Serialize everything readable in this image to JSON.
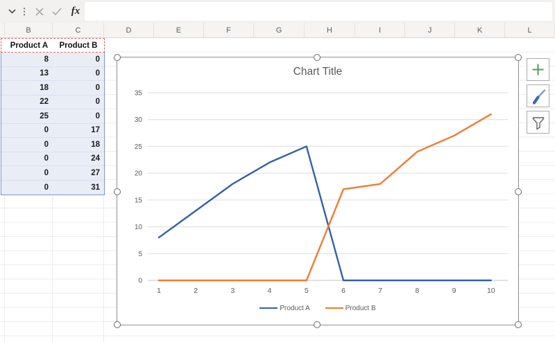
{
  "toolbar": {
    "fx_label": "fx",
    "formula_value": ""
  },
  "sheet": {
    "column_letters": [
      "B",
      "C",
      "D",
      "E",
      "F",
      "G",
      "H",
      "I",
      "J",
      "K",
      "L"
    ]
  },
  "table": {
    "headers": [
      "Product A",
      "Product B"
    ],
    "rows": [
      [
        8,
        0
      ],
      [
        13,
        0
      ],
      [
        18,
        0
      ],
      [
        22,
        0
      ],
      [
        25,
        0
      ],
      [
        0,
        17
      ],
      [
        0,
        18
      ],
      [
        0,
        24
      ],
      [
        0,
        27
      ],
      [
        0,
        31
      ]
    ]
  },
  "chart_data": {
    "type": "line",
    "title": "Chart Title",
    "x": [
      1,
      2,
      3,
      4,
      5,
      6,
      7,
      8,
      9,
      10
    ],
    "series": [
      {
        "name": "Product A",
        "color": "#3260A8",
        "values": [
          8,
          13,
          18,
          22,
          25,
          0,
          0,
          0,
          0,
          0
        ]
      },
      {
        "name": "Product B",
        "color": "#ED7D31",
        "values": [
          0,
          0,
          0,
          0,
          0,
          17,
          18,
          24,
          27,
          31
        ]
      }
    ],
    "ylim": [
      0,
      35
    ],
    "ytick_step": 5,
    "grid": true,
    "legend_position": "bottom"
  },
  "chart_tools": [
    {
      "icon": "plus-icon",
      "accent": "#4e9d57"
    },
    {
      "icon": "brush-icon",
      "accent": "#3a6ab0"
    },
    {
      "icon": "funnel-icon",
      "accent": "#5f6368"
    }
  ],
  "colors": {
    "selection_fill": "#E9EDF6",
    "selection_border": "#7B96C9",
    "header_dash_border": "#E06666",
    "chart_frame": "#8F8F8F",
    "gridline": "#DCDCDC",
    "axis_line": "#C6C6C6",
    "tick_text": "#595959"
  }
}
